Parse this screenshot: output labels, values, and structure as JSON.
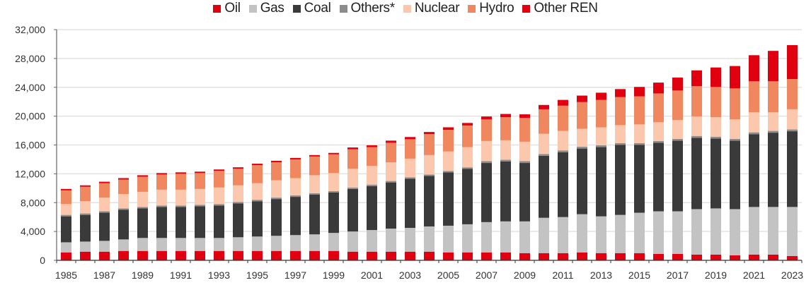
{
  "chart_data": {
    "type": "bar",
    "stacked": true,
    "title": "",
    "xlabel": "",
    "ylabel": "",
    "ylim": [
      0,
      32000
    ],
    "yticks": [
      0,
      4000,
      8000,
      12000,
      16000,
      20000,
      24000,
      28000,
      32000
    ],
    "ytick_labels": [
      "0",
      "4,000",
      "8,000",
      "12,000",
      "16,000",
      "20,000",
      "24,000",
      "28,000",
      "32,000"
    ],
    "grid": true,
    "legend_position": "top-center",
    "categories": [
      "1985",
      "1986",
      "1987",
      "1988",
      "1989",
      "1990",
      "1991",
      "1992",
      "1993",
      "1994",
      "1995",
      "1996",
      "1997",
      "1998",
      "1999",
      "2000",
      "2001",
      "2002",
      "2003",
      "2004",
      "2005",
      "2006",
      "2007",
      "2008",
      "2009",
      "2010",
      "2011",
      "2012",
      "2013",
      "2014",
      "2015",
      "2016",
      "2017",
      "2018",
      "2019",
      "2020",
      "2021",
      "2022",
      "2023"
    ],
    "xtick_labels": [
      "1985",
      "1987",
      "1989",
      "1991",
      "1993",
      "1995",
      "1997",
      "1999",
      "2001",
      "2003",
      "2005",
      "2007",
      "2009",
      "2011",
      "2013",
      "2015",
      "2017",
      "2019",
      "2021",
      "2023"
    ],
    "series": [
      {
        "name": "Oil",
        "color": "#e0000f",
        "values": [
          1100,
          1200,
          1200,
          1300,
          1300,
          1300,
          1300,
          1300,
          1300,
          1300,
          1300,
          1300,
          1300,
          1300,
          1300,
          1200,
          1200,
          1200,
          1200,
          1200,
          1100,
          1100,
          1100,
          1100,
          1000,
          1000,
          1000,
          1100,
          1000,
          1000,
          1000,
          900,
          900,
          800,
          800,
          700,
          800,
          800,
          600
        ]
      },
      {
        "name": "Gas",
        "color": "#c3c3c3",
        "values": [
          1400,
          1400,
          1500,
          1600,
          1800,
          1800,
          1800,
          1800,
          1800,
          1900,
          2000,
          2100,
          2200,
          2300,
          2500,
          2800,
          3000,
          3200,
          3300,
          3500,
          3700,
          3900,
          4200,
          4300,
          4400,
          4900,
          5000,
          5300,
          5100,
          5300,
          5600,
          5900,
          5900,
          6300,
          6400,
          6400,
          6600,
          6600,
          6800
        ]
      },
      {
        "name": "Coal",
        "color": "#3a3a3a",
        "values": [
          3600,
          3700,
          3900,
          4100,
          4100,
          4300,
          4300,
          4400,
          4500,
          4700,
          4900,
          5100,
          5300,
          5500,
          5600,
          5900,
          6100,
          6400,
          6800,
          7000,
          7400,
          7700,
          8200,
          8300,
          8100,
          8600,
          9000,
          9100,
          9600,
          9700,
          9400,
          9500,
          9800,
          9900,
          9700,
          9500,
          10100,
          10300,
          10500
        ]
      },
      {
        "name": "Others*",
        "color": "#8c8c8c",
        "values": [
          200,
          200,
          200,
          200,
          200,
          200,
          200,
          200,
          200,
          200,
          200,
          200,
          200,
          200,
          200,
          200,
          200,
          200,
          200,
          200,
          200,
          200,
          250,
          250,
          250,
          250,
          250,
          250,
          250,
          250,
          250,
          250,
          250,
          250,
          250,
          250,
          250,
          250,
          250
        ]
      },
      {
        "name": "Nuclear",
        "color": "#fbc8ad",
        "values": [
          1500,
          1700,
          1900,
          2000,
          2100,
          2200,
          2200,
          2200,
          2300,
          2300,
          2300,
          2400,
          2400,
          2500,
          2500,
          2600,
          2600,
          2600,
          2600,
          2700,
          2700,
          2800,
          2800,
          2700,
          2700,
          2800,
          2700,
          2500,
          2500,
          2500,
          2600,
          2600,
          2600,
          2700,
          2700,
          2700,
          2800,
          2600,
          2800
        ]
      },
      {
        "name": "Hydro",
        "color": "#f0875f",
        "values": [
          1900,
          2000,
          2000,
          2000,
          2100,
          2100,
          2200,
          2200,
          2300,
          2300,
          2500,
          2500,
          2600,
          2600,
          2600,
          2700,
          2600,
          2700,
          2700,
          2900,
          3000,
          3000,
          3000,
          3200,
          3300,
          3400,
          3500,
          3700,
          3800,
          3900,
          3900,
          4000,
          4100,
          4200,
          4200,
          4300,
          4300,
          4300,
          4200
        ]
      },
      {
        "name": "Other REN",
        "color": "#e0000f",
        "values": [
          200,
          200,
          200,
          200,
          200,
          200,
          200,
          200,
          200,
          200,
          200,
          200,
          200,
          200,
          200,
          250,
          250,
          300,
          300,
          300,
          350,
          350,
          400,
          450,
          500,
          600,
          800,
          900,
          1000,
          1100,
          1300,
          1500,
          1800,
          2200,
          2700,
          3100,
          3600,
          4200,
          4700
        ]
      }
    ]
  }
}
